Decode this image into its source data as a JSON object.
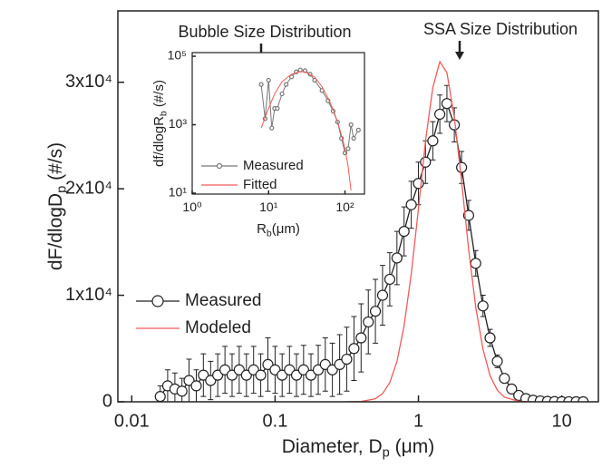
{
  "chart_data": [
    {
      "type": "line",
      "x_label": [
        "Diameter, D",
        "p",
        " (μm)"
      ],
      "y_label": [
        "dF/dlogD",
        "p",
        " (#/s)"
      ],
      "xscale": "log",
      "yscale": "linear",
      "xlim": [
        0.008,
        18
      ],
      "ylim": [
        0,
        36700
      ],
      "xticks": [
        0.01,
        0.1,
        1,
        10
      ],
      "yticks": [
        0,
        {
          "value": 10000,
          "label": "1x10⁴"
        },
        {
          "value": 20000,
          "label": "2x10⁴"
        },
        {
          "value": 30000,
          "label": "3x10⁴"
        }
      ],
      "legend": "middle left",
      "annotations": [
        {
          "text": "Bubble Size Distribution"
        },
        {
          "text": "SSA Size Distribution"
        }
      ],
      "series": [
        {
          "name": "Measured",
          "color": "#222222",
          "marker": "circle",
          "x": [
            0.0158,
            0.0178,
            0.02,
            0.0224,
            0.0251,
            0.0282,
            0.0316,
            0.0355,
            0.0398,
            0.0447,
            0.0501,
            0.0562,
            0.0631,
            0.0708,
            0.0794,
            0.0891,
            0.1,
            0.112,
            0.126,
            0.141,
            0.158,
            0.178,
            0.2,
            0.224,
            0.251,
            0.282,
            0.316,
            0.355,
            0.398,
            0.447,
            0.501,
            0.562,
            0.631,
            0.708,
            0.794,
            0.891,
            1.0,
            1.12,
            1.26,
            1.41,
            1.58,
            1.78,
            2.0,
            2.24,
            2.51,
            2.82,
            3.16,
            3.55,
            3.98,
            4.47,
            5.01,
            5.62,
            6.31,
            7.08,
            7.94,
            8.91,
            10,
            11.2,
            12.6,
            14.1
          ],
          "values": [
            500,
            1500,
            1200,
            1000,
            2000,
            1500,
            2500,
            2000,
            2500,
            3000,
            2500,
            3000,
            2500,
            3000,
            2500,
            3500,
            3000,
            2500,
            3000,
            2500,
            3000,
            2500,
            3000,
            3500,
            3000,
            3500,
            4000,
            5000,
            6000,
            7500,
            8500,
            10000,
            11500,
            13500,
            16000,
            18500,
            20500,
            22500,
            24500,
            27000,
            28000,
            26000,
            22000,
            17500,
            13000,
            9000,
            6000,
            3800,
            2200,
            1200,
            600,
            300,
            150,
            80,
            40,
            20,
            10,
            5,
            3,
            2
          ],
          "errors": [
            1000,
            1500,
            1500,
            1200,
            2000,
            1500,
            2000,
            1800,
            2000,
            2200,
            2000,
            2200,
            2000,
            2200,
            2000,
            2500,
            2200,
            2000,
            2200,
            2000,
            2300,
            2000,
            2300,
            2500,
            2500,
            2800,
            3000,
            3000,
            3200,
            3000,
            3000,
            2800,
            2500,
            2500,
            2300,
            2200,
            2000,
            2000,
            1800,
            1800,
            1700,
            1600,
            1500,
            1400,
            1200,
            1000,
            800,
            600,
            400,
            300,
            200,
            100,
            60,
            40,
            20,
            10,
            5,
            3,
            2,
            1
          ]
        },
        {
          "name": "Modeled",
          "color": "#f25a5a",
          "marker": null,
          "x": [
            0.316,
            0.398,
            0.501,
            0.562,
            0.631,
            0.708,
            0.794,
            0.891,
            1.0,
            1.12,
            1.26,
            1.41,
            1.58,
            1.78,
            2.0,
            2.24,
            2.51,
            2.82,
            3.16,
            3.55,
            3.98,
            5.01,
            6.31
          ],
          "values": [
            2,
            30,
            290,
            760,
            1800,
            3780,
            7130,
            12000,
            18100,
            24500,
            29500,
            31930,
            30900,
            26700,
            20700,
            14300,
            8900,
            4940,
            2450,
            1090,
            430,
            49,
            3
          ]
        }
      ]
    },
    {
      "type": "line",
      "x_label": [
        "R",
        "b",
        "(μm)"
      ],
      "y_label": [
        "df/dlogR",
        "b",
        " (#/s)"
      ],
      "xscale": "log",
      "yscale": "log",
      "xlim": [
        1,
        180
      ],
      "ylim": [
        9.4,
        128000
      ],
      "xticks": [
        {
          "value": 1,
          "label": "10⁰"
        },
        {
          "value": 10,
          "label": "10¹"
        },
        {
          "value": 100,
          "label": "10²"
        }
      ],
      "yticks": [
        {
          "value": 10,
          "label": "10¹"
        },
        {
          "value": 1000,
          "label": "10³"
        },
        {
          "value": 100000,
          "label": "10⁵"
        }
      ],
      "legend": "lower left",
      "series": [
        {
          "name": "Measured",
          "color": "#777777",
          "marker": "circle",
          "x": [
            8,
            9,
            10,
            11,
            12,
            13,
            15,
            17,
            20,
            23,
            26,
            30,
            35,
            40,
            50,
            60,
            70,
            80,
            90,
            100,
            110,
            120,
            130,
            150
          ],
          "values": [
            15000,
            1500,
            20000,
            800,
            3000,
            3000,
            8000,
            15000,
            25000,
            35000,
            40000,
            38000,
            30000,
            20000,
            10000,
            5000,
            2500,
            1200,
            400,
            150,
            200,
            1000,
            400,
            700
          ]
        },
        {
          "name": "Fitted",
          "color": "#f25a5a",
          "marker": null,
          "x": [
            8,
            10,
            12,
            15,
            20,
            25,
            30,
            40,
            50,
            60,
            70,
            80,
            90,
            100,
            110,
            120
          ],
          "values": [
            800,
            3000,
            8000,
            18000,
            30000,
            35000,
            35000,
            25000,
            13000,
            6000,
            2800,
            1200,
            500,
            200,
            60,
            12
          ]
        }
      ]
    }
  ]
}
